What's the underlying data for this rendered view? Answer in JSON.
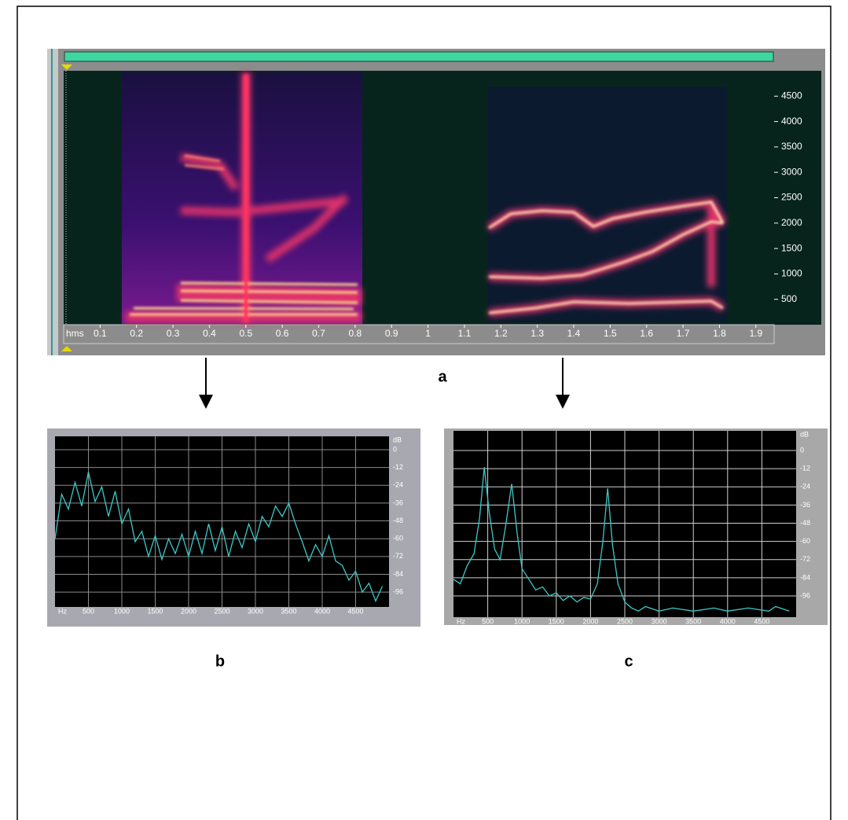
{
  "chart_data": [
    {
      "type": "spectrogram",
      "label": "a",
      "x_label": "hms",
      "xlim": [
        0,
        1.95
      ],
      "xticks": [
        0.1,
        0.2,
        0.3,
        0.4,
        0.5,
        0.6,
        0.7,
        0.8,
        0.9,
        1.0,
        1.1,
        1.2,
        1.3,
        1.4,
        1.5,
        1.6,
        1.7,
        1.8,
        1.9
      ],
      "ylim": [
        0,
        5000
      ],
      "yticks": [
        500,
        1000,
        1500,
        2000,
        2500,
        3000,
        3500,
        4000,
        4500
      ]
    },
    {
      "type": "line",
      "label": "b",
      "x_label": "Hz",
      "y_label": "dB",
      "x": [
        0,
        100,
        200,
        300,
        400,
        500,
        600,
        700,
        800,
        900,
        1000,
        1100,
        1200,
        1300,
        1400,
        1500,
        1600,
        1700,
        1800,
        1900,
        2000,
        2100,
        2200,
        2300,
        2400,
        2500,
        2600,
        2700,
        2800,
        2900,
        3000,
        3100,
        3200,
        3300,
        3400,
        3500,
        3600,
        3700,
        3800,
        3900,
        4000,
        4100,
        4200,
        4300,
        4400,
        4500,
        4600,
        4700,
        4800,
        4900
      ],
      "series": [
        {
          "color": "#3cc8c8",
          "values": [
            -60,
            -30,
            -40,
            -22,
            -38,
            -15,
            -35,
            -25,
            -45,
            -28,
            -50,
            -40,
            -62,
            -55,
            -72,
            -58,
            -74,
            -60,
            -70,
            -57,
            -72,
            -55,
            -70,
            -50,
            -68,
            -52,
            -72,
            -55,
            -66,
            -50,
            -62,
            -45,
            -52,
            -38,
            -45,
            -36,
            -50,
            -62,
            -75,
            -64,
            -72,
            -58,
            -75,
            -78,
            -88,
            -82,
            -96,
            -90,
            -102,
            -92
          ]
        }
      ],
      "xlim": [
        0,
        5000
      ],
      "xticks": [
        500,
        1000,
        1500,
        2000,
        2500,
        3000,
        3500,
        4000,
        4500
      ],
      "ylim": [
        -106,
        9
      ],
      "yticks": [
        0,
        -12,
        -24,
        -36,
        -48,
        -60,
        -72,
        -84,
        -96
      ],
      "grid": true,
      "grid_color": "#8a8a8a"
    },
    {
      "type": "line",
      "label": "c",
      "x_label": "Hz",
      "y_label": "dB",
      "x": [
        0,
        100,
        200,
        300,
        380,
        450,
        520,
        600,
        680,
        760,
        850,
        930,
        1000,
        1100,
        1200,
        1300,
        1400,
        1500,
        1600,
        1700,
        1800,
        1900,
        2000,
        2100,
        2180,
        2250,
        2320,
        2400,
        2500,
        2600,
        2700,
        2800,
        3000,
        3200,
        3500,
        3800,
        4000,
        4300,
        4600,
        4700,
        4900
      ],
      "series": [
        {
          "color": "#3cc8c8",
          "values": [
            -85,
            -88,
            -76,
            -68,
            -45,
            -11,
            -40,
            -65,
            -72,
            -50,
            -22,
            -55,
            -78,
            -85,
            -92,
            -90,
            -96,
            -94,
            -99,
            -96,
            -100,
            -97,
            -98,
            -88,
            -60,
            -25,
            -62,
            -88,
            -100,
            -104,
            -106,
            -103,
            -106,
            -104,
            -106,
            -104,
            -106,
            -104,
            -106,
            -103,
            -106
          ]
        }
      ],
      "xlim": [
        0,
        5000
      ],
      "xticks": [
        500,
        1000,
        1500,
        2000,
        2500,
        3000,
        3500,
        4000,
        4500
      ],
      "ylim": [
        -110,
        13
      ],
      "yticks": [
        0,
        -12,
        -24,
        -36,
        -48,
        -60,
        -72,
        -84,
        -96
      ],
      "grid": true,
      "grid_color": "#d0d0d0"
    }
  ]
}
